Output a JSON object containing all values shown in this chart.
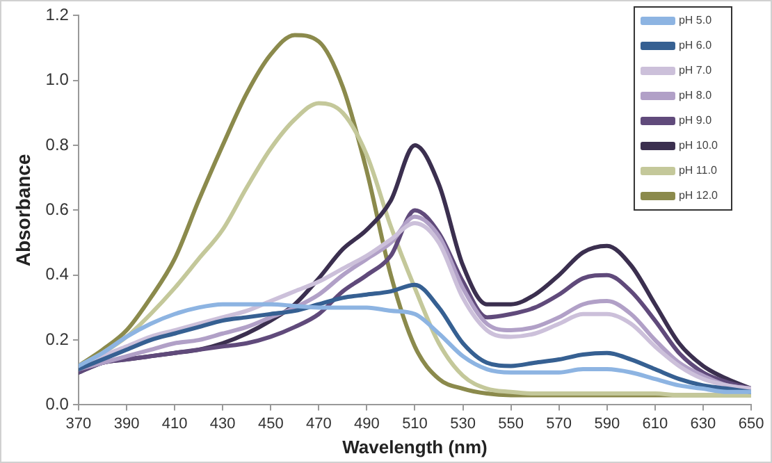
{
  "chart_data": {
    "type": "line",
    "xlabel": "Wavelength (nm)",
    "ylabel": "Absorbance",
    "x": [
      370,
      380,
      390,
      400,
      410,
      420,
      430,
      440,
      450,
      460,
      470,
      480,
      490,
      500,
      510,
      520,
      530,
      540,
      550,
      560,
      570,
      580,
      590,
      600,
      610,
      620,
      630,
      640,
      650
    ],
    "xlim": [
      370,
      650
    ],
    "xticks": [
      370,
      390,
      410,
      430,
      450,
      470,
      490,
      510,
      530,
      550,
      570,
      590,
      610,
      630,
      650
    ],
    "ylim": [
      0,
      1.2
    ],
    "yticks": [
      {
        "value": 0,
        "label": "0.0"
      },
      {
        "value": 0.2,
        "label": "0.2"
      },
      {
        "value": 0.4,
        "label": "0.4"
      },
      {
        "value": 0.6,
        "label": "0.6"
      },
      {
        "value": 0.8,
        "label": "0.8"
      },
      {
        "value": 1,
        "label": "1.0"
      },
      {
        "value": 1.2,
        "label": "1.2"
      }
    ],
    "grid": false,
    "legend": "top right",
    "marker": "none",
    "line_style": "solid",
    "series": [
      {
        "name": "pH 5.0",
        "color": "#8db4e2",
        "values": [
          0.12,
          0.16,
          0.21,
          0.25,
          0.28,
          0.3,
          0.31,
          0.31,
          0.31,
          0.305,
          0.3,
          0.3,
          0.3,
          0.29,
          0.28,
          0.22,
          0.15,
          0.11,
          0.1,
          0.1,
          0.1,
          0.11,
          0.11,
          0.1,
          0.08,
          0.06,
          0.05,
          0.04,
          0.04
        ]
      },
      {
        "name": "pH 6.0",
        "color": "#366092",
        "values": [
          0.11,
          0.14,
          0.17,
          0.2,
          0.22,
          0.24,
          0.26,
          0.27,
          0.28,
          0.29,
          0.31,
          0.33,
          0.34,
          0.35,
          0.37,
          0.3,
          0.19,
          0.13,
          0.12,
          0.13,
          0.14,
          0.155,
          0.16,
          0.14,
          0.11,
          0.08,
          0.06,
          0.05,
          0.04
        ]
      },
      {
        "name": "pH 7.0",
        "color": "#ccc0da",
        "values": [
          0.11,
          0.15,
          0.18,
          0.21,
          0.23,
          0.25,
          0.27,
          0.29,
          0.32,
          0.35,
          0.38,
          0.42,
          0.46,
          0.51,
          0.56,
          0.5,
          0.33,
          0.23,
          0.21,
          0.22,
          0.25,
          0.28,
          0.28,
          0.25,
          0.18,
          0.12,
          0.08,
          0.06,
          0.05
        ]
      },
      {
        "name": "pH 8.0",
        "color": "#b1a0c7",
        "values": [
          0.11,
          0.13,
          0.15,
          0.17,
          0.19,
          0.2,
          0.22,
          0.24,
          0.27,
          0.3,
          0.34,
          0.4,
          0.45,
          0.5,
          0.58,
          0.52,
          0.36,
          0.25,
          0.23,
          0.24,
          0.27,
          0.31,
          0.32,
          0.28,
          0.2,
          0.13,
          0.09,
          0.06,
          0.05
        ]
      },
      {
        "name": "pH 9.0",
        "color": "#604a7b",
        "values": [
          0.1,
          0.13,
          0.14,
          0.15,
          0.16,
          0.17,
          0.18,
          0.19,
          0.21,
          0.24,
          0.28,
          0.35,
          0.4,
          0.46,
          0.6,
          0.53,
          0.38,
          0.27,
          0.28,
          0.3,
          0.34,
          0.39,
          0.4,
          0.35,
          0.26,
          0.16,
          0.1,
          0.07,
          0.05
        ]
      },
      {
        "name": "pH 10.0",
        "color": "#3b2f4f",
        "values": [
          0.1,
          0.13,
          0.14,
          0.15,
          0.16,
          0.17,
          0.19,
          0.22,
          0.26,
          0.31,
          0.39,
          0.48,
          0.54,
          0.63,
          0.8,
          0.68,
          0.43,
          0.31,
          0.31,
          0.34,
          0.4,
          0.47,
          0.49,
          0.43,
          0.31,
          0.19,
          0.12,
          0.08,
          0.05
        ]
      },
      {
        "name": "pH 11.0",
        "color": "#c4c89a",
        "values": [
          0.12,
          0.16,
          0.21,
          0.28,
          0.36,
          0.45,
          0.54,
          0.67,
          0.79,
          0.88,
          0.93,
          0.9,
          0.77,
          0.55,
          0.36,
          0.19,
          0.09,
          0.05,
          0.04,
          0.035,
          0.035,
          0.035,
          0.035,
          0.035,
          0.035,
          0.03,
          0.03,
          0.03,
          0.03
        ]
      },
      {
        "name": "pH 12.0",
        "color": "#8b8a4c",
        "values": [
          0.12,
          0.17,
          0.23,
          0.33,
          0.45,
          0.63,
          0.8,
          0.96,
          1.08,
          1.14,
          1.12,
          0.98,
          0.72,
          0.4,
          0.18,
          0.08,
          0.05,
          0.035,
          0.03,
          0.03,
          0.03,
          0.03,
          0.03,
          0.03,
          0.03,
          0.03,
          0.03,
          0.03,
          0.03
        ]
      }
    ]
  }
}
